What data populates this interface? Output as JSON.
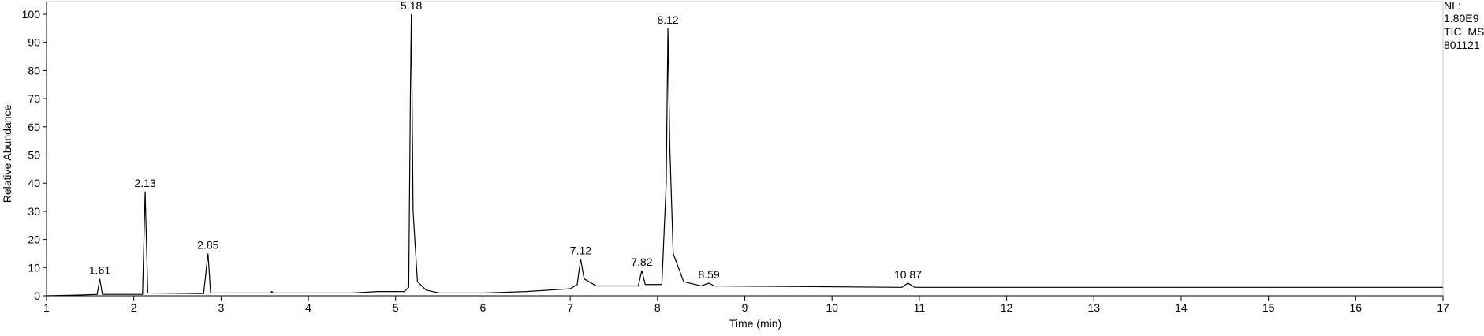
{
  "chart_data": {
    "type": "line",
    "xlabel": "Time (min)",
    "ylabel": "Relative Abundance",
    "side_text": [
      "NL:",
      "1.80E9",
      "TIC  MS",
      "801121"
    ],
    "color": "#000000",
    "xlim": [
      1,
      17
    ],
    "ylim": [
      0,
      100
    ],
    "xticks": [
      1,
      2,
      3,
      4,
      5,
      6,
      7,
      8,
      9,
      10,
      11,
      12,
      13,
      14,
      15,
      16,
      17
    ],
    "yticks": [
      0,
      10,
      20,
      30,
      40,
      50,
      60,
      70,
      80,
      90,
      100
    ],
    "x": [
      1.0,
      1.4,
      1.58,
      1.61,
      1.64,
      2.1,
      2.13,
      2.16,
      2.8,
      2.85,
      2.88,
      3.57,
      3.58,
      3.6,
      4.5,
      4.8,
      5.1,
      5.15,
      5.17,
      5.18,
      5.2,
      5.25,
      5.35,
      5.5,
      6.0,
      6.5,
      7.0,
      7.08,
      7.12,
      7.16,
      7.3,
      7.78,
      7.82,
      7.86,
      8.05,
      8.1,
      8.12,
      8.14,
      8.18,
      8.3,
      8.5,
      8.59,
      8.65,
      10.8,
      10.87,
      10.95,
      12.0,
      17.0
    ],
    "values": [
      0,
      0.3,
      0.5,
      6,
      0.5,
      0.5,
      37,
      1,
      0.8,
      15,
      1,
      1,
      1.5,
      1,
      1,
      1.5,
      1.5,
      3,
      74,
      100,
      30,
      5,
      2,
      1,
      1,
      1.5,
      2.5,
      4,
      13,
      6,
      3.5,
      3.5,
      9,
      4,
      4,
      40,
      95,
      54,
      15,
      5,
      3.5,
      4.5,
      3.5,
      3,
      4.5,
      3,
      3,
      3
    ],
    "peaks": [
      {
        "x": 1.61,
        "y": 6
      },
      {
        "x": 2.13,
        "y": 37
      },
      {
        "x": 2.85,
        "y": 15
      },
      {
        "x": 5.18,
        "y": 100
      },
      {
        "x": 7.12,
        "y": 13
      },
      {
        "x": 7.82,
        "y": 9
      },
      {
        "x": 8.12,
        "y": 95
      },
      {
        "x": 8.59,
        "y": 4.5
      },
      {
        "x": 10.87,
        "y": 4.5
      }
    ]
  }
}
